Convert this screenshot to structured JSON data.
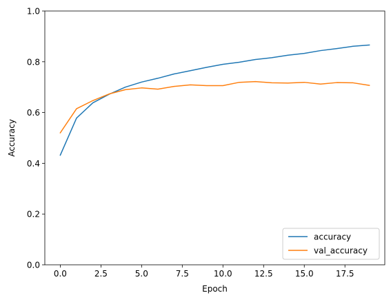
{
  "chart_data": {
    "type": "line",
    "title": "",
    "xlabel": "Epoch",
    "ylabel": "Accuracy",
    "xlim": [
      -0.95,
      19.95
    ],
    "ylim": [
      0.0,
      1.0
    ],
    "grid": false,
    "legend_position": "lower right",
    "x": [
      0,
      1,
      2,
      3,
      4,
      5,
      6,
      7,
      8,
      9,
      10,
      11,
      12,
      13,
      14,
      15,
      16,
      17,
      18,
      19
    ],
    "x_ticks": [
      0.0,
      2.5,
      5.0,
      7.5,
      10.0,
      12.5,
      15.0,
      17.5
    ],
    "x_tick_labels": [
      "0.0",
      "2.5",
      "5.0",
      "7.5",
      "10.0",
      "12.5",
      "15.0",
      "17.5"
    ],
    "y_ticks": [
      0.0,
      0.2,
      0.4,
      0.6,
      0.8,
      1.0
    ],
    "y_tick_labels": [
      "0.0",
      "0.2",
      "0.4",
      "0.6",
      "0.8",
      "1.0"
    ],
    "series": [
      {
        "name": "accuracy",
        "color": "#1f77b4",
        "values": [
          0.432,
          0.578,
          0.638,
          0.672,
          0.7,
          0.72,
          0.735,
          0.752,
          0.765,
          0.778,
          0.79,
          0.798,
          0.809,
          0.816,
          0.826,
          0.833,
          0.844,
          0.852,
          0.861,
          0.866
        ]
      },
      {
        "name": "val_accuracy",
        "color": "#ff7f0e",
        "values": [
          0.52,
          0.615,
          0.647,
          0.673,
          0.69,
          0.697,
          0.692,
          0.703,
          0.709,
          0.706,
          0.706,
          0.719,
          0.722,
          0.717,
          0.716,
          0.719,
          0.712,
          0.718,
          0.717,
          0.707
        ]
      }
    ]
  }
}
